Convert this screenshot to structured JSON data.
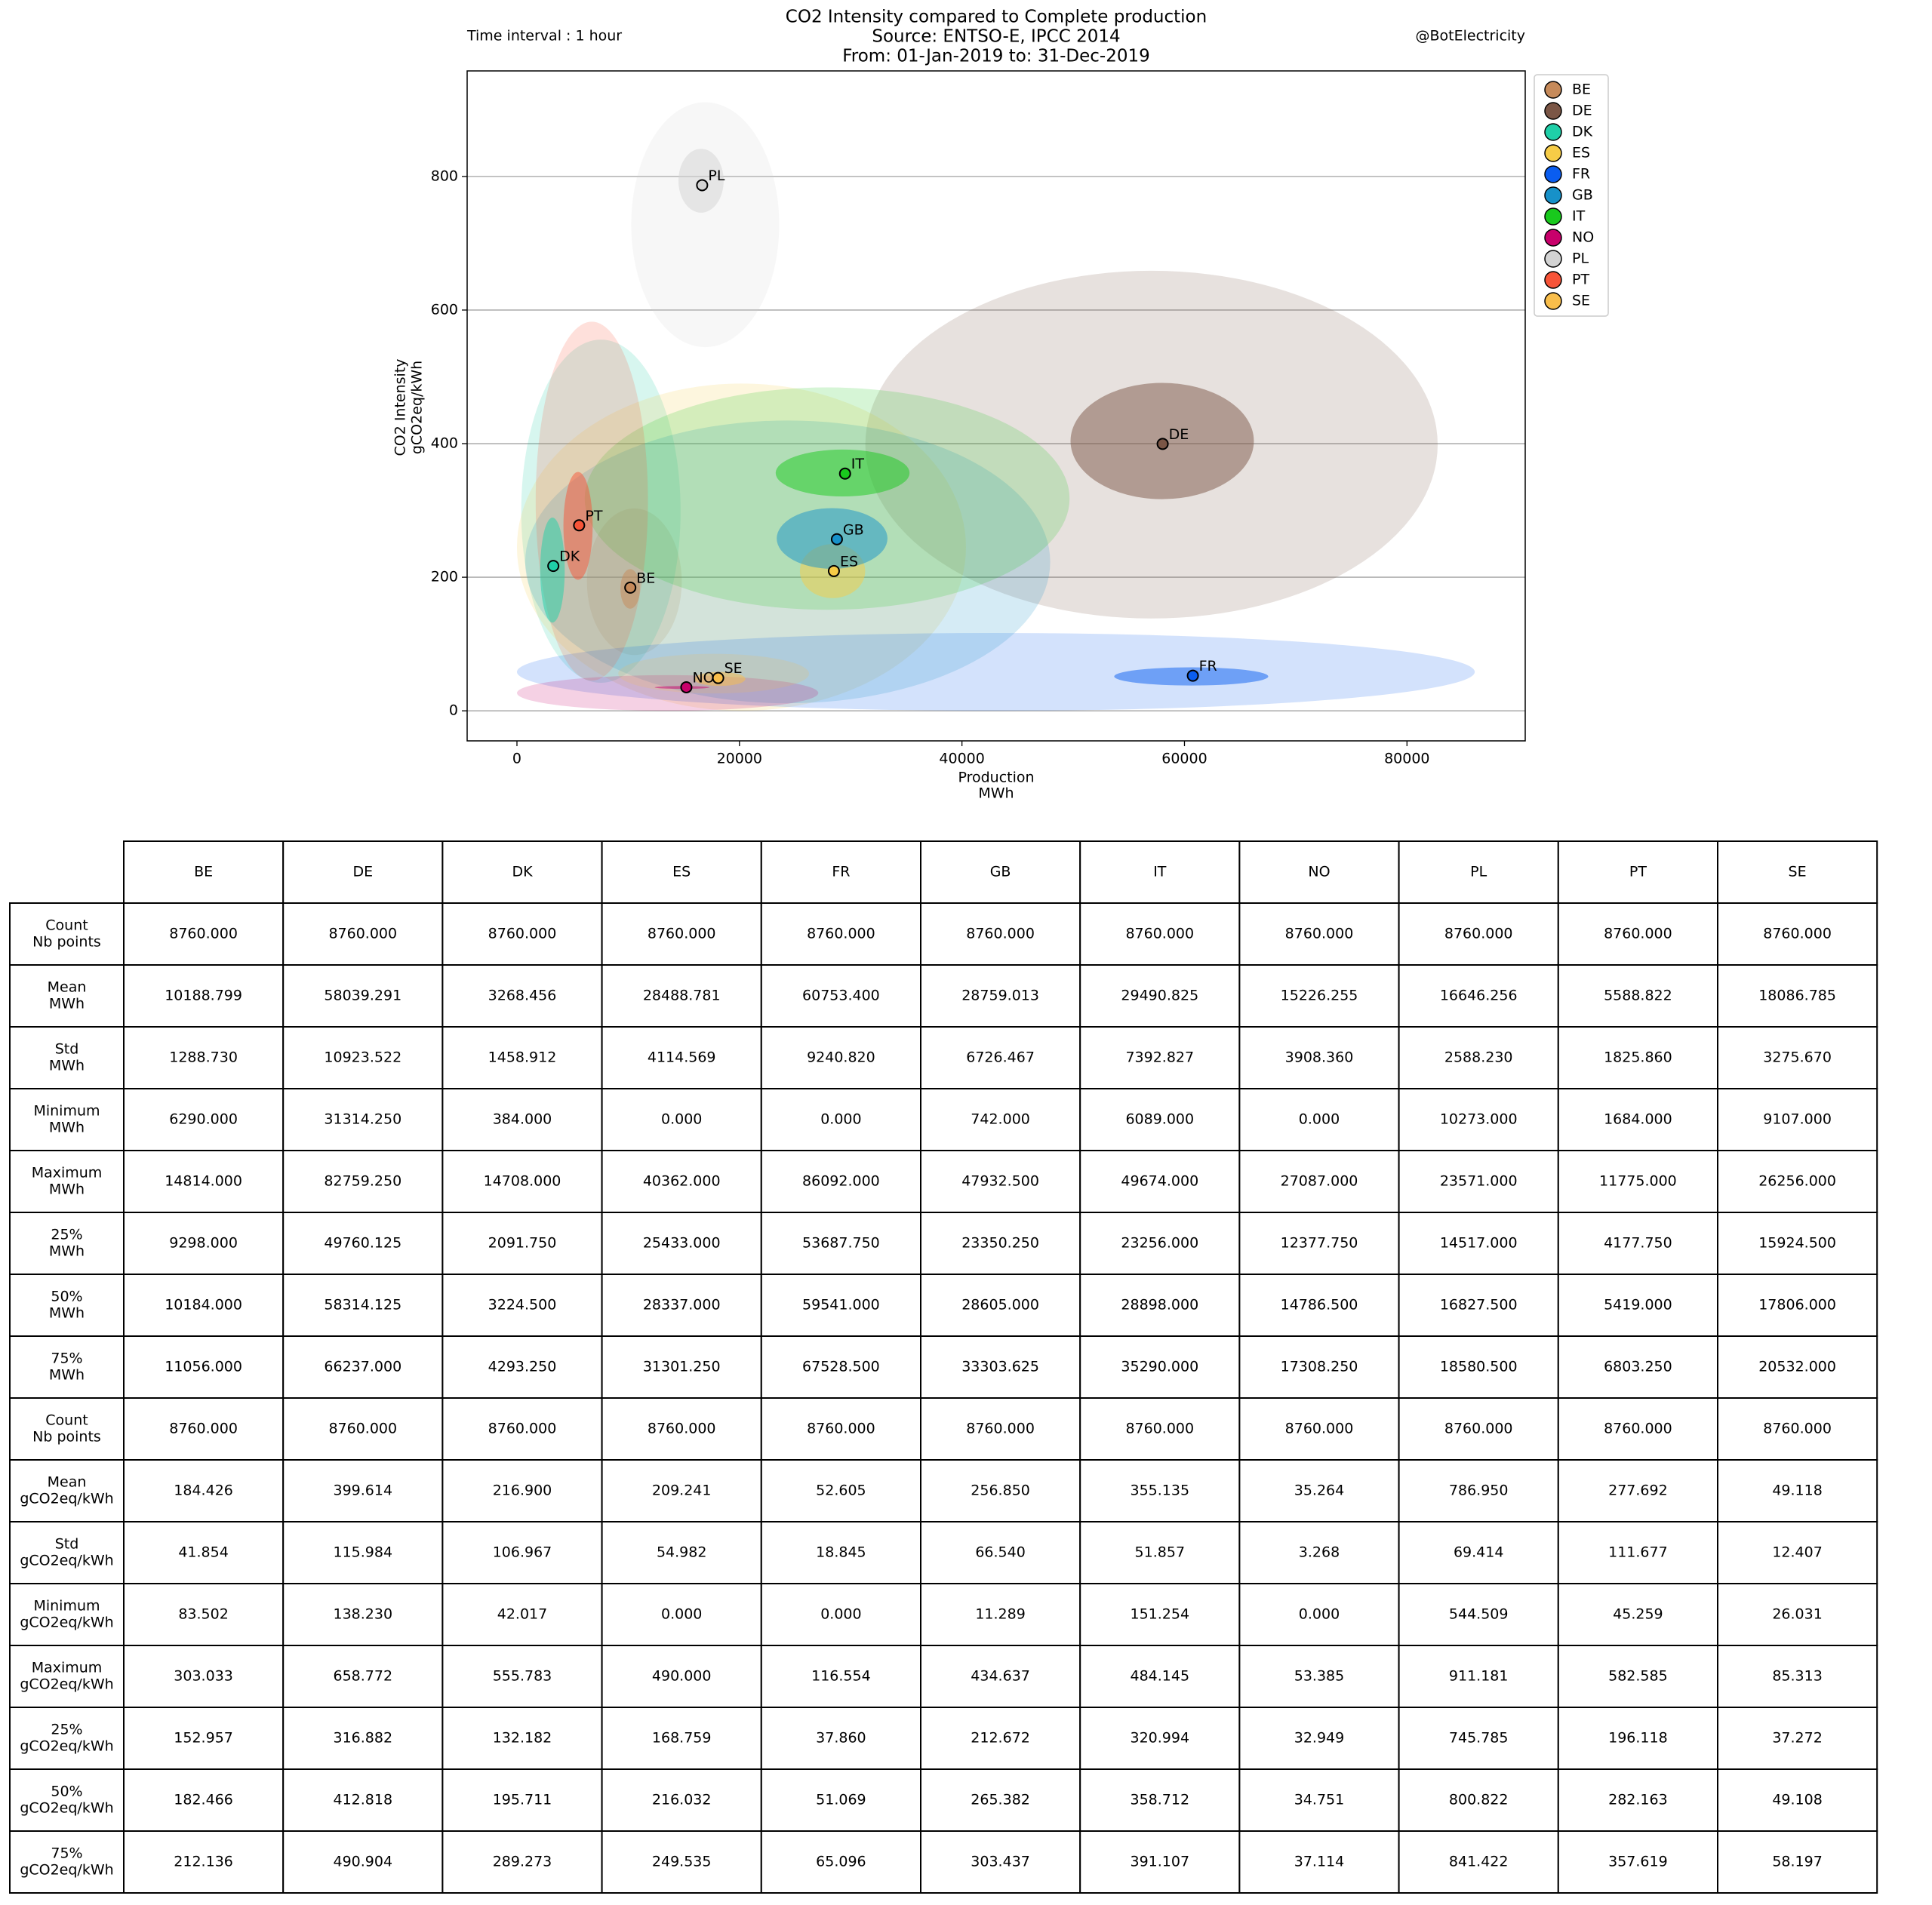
{
  "chart_data": {
    "type": "scatter",
    "title": [
      "CO2 Intensity compared to Complete production",
      "Source: ENTSO-E, IPCC 2014",
      "From: 01-Jan-2019 to: 31-Dec-2019"
    ],
    "annotations": [
      "Time interval : 1 hour",
      "@BotElectricity"
    ],
    "xlabel": [
      "Production",
      "MWh"
    ],
    "ylabel": [
      "CO2 Intensity",
      "gCO2eq/kWh"
    ],
    "xlim": [
      -4476,
      90629
    ],
    "ylim": [
      -45,
      958
    ],
    "xticks": [
      0,
      20000,
      40000,
      60000,
      80000
    ],
    "yticks": [
      0,
      200,
      400,
      600,
      800
    ],
    "grid": true,
    "legend": "outside right",
    "series": [
      {
        "name": "BE",
        "color": "#c68a5a"
      },
      {
        "name": "DE",
        "color": "#7b5646"
      },
      {
        "name": "DK",
        "color": "#1fcfa8"
      },
      {
        "name": "ES",
        "color": "#f6cc47"
      },
      {
        "name": "FR",
        "color": "#0a5df0"
      },
      {
        "name": "GB",
        "color": "#1791c9"
      },
      {
        "name": "IT",
        "color": "#19c91d"
      },
      {
        "name": "NO",
        "color": "#c8006b"
      },
      {
        "name": "PL",
        "color": "#d3d3d3"
      },
      {
        "name": "PT",
        "color": "#f75438"
      },
      {
        "name": "SE",
        "color": "#f9be4b"
      }
    ]
  },
  "table": {
    "columns": [
      "BE",
      "DE",
      "DK",
      "ES",
      "FR",
      "GB",
      "IT",
      "NO",
      "PL",
      "PT",
      "SE"
    ],
    "rows": [
      {
        "label": [
          "Count",
          "Nb points"
        ],
        "cells": [
          "8760.000",
          "8760.000",
          "8760.000",
          "8760.000",
          "8760.000",
          "8760.000",
          "8760.000",
          "8760.000",
          "8760.000",
          "8760.000",
          "8760.000"
        ]
      },
      {
        "label": [
          "Mean",
          "MWh"
        ],
        "cells": [
          "10188.799",
          "58039.291",
          "3268.456",
          "28488.781",
          "60753.400",
          "28759.013",
          "29490.825",
          "15226.255",
          "16646.256",
          "5588.822",
          "18086.785"
        ]
      },
      {
        "label": [
          "Std",
          "MWh"
        ],
        "cells": [
          "1288.730",
          "10923.522",
          "1458.912",
          "4114.569",
          "9240.820",
          "6726.467",
          "7392.827",
          "3908.360",
          "2588.230",
          "1825.860",
          "3275.670"
        ]
      },
      {
        "label": [
          "Minimum",
          "MWh"
        ],
        "cells": [
          "6290.000",
          "31314.250",
          "384.000",
          "0.000",
          "0.000",
          "742.000",
          "6089.000",
          "0.000",
          "10273.000",
          "1684.000",
          "9107.000"
        ]
      },
      {
        "label": [
          "Maximum",
          "MWh"
        ],
        "cells": [
          "14814.000",
          "82759.250",
          "14708.000",
          "40362.000",
          "86092.000",
          "47932.500",
          "49674.000",
          "27087.000",
          "23571.000",
          "11775.000",
          "26256.000"
        ]
      },
      {
        "label": [
          "25%",
          "MWh"
        ],
        "cells": [
          "9298.000",
          "49760.125",
          "2091.750",
          "25433.000",
          "53687.750",
          "23350.250",
          "23256.000",
          "12377.750",
          "14517.000",
          "4177.750",
          "15924.500"
        ]
      },
      {
        "label": [
          "50%",
          "MWh"
        ],
        "cells": [
          "10184.000",
          "58314.125",
          "3224.500",
          "28337.000",
          "59541.000",
          "28605.000",
          "28898.000",
          "14786.500",
          "16827.500",
          "5419.000",
          "17806.000"
        ]
      },
      {
        "label": [
          "75%",
          "MWh"
        ],
        "cells": [
          "11056.000",
          "66237.000",
          "4293.250",
          "31301.250",
          "67528.500",
          "33303.625",
          "35290.000",
          "17308.250",
          "18580.500",
          "6803.250",
          "20532.000"
        ]
      },
      {
        "label": [
          "Count",
          "Nb points"
        ],
        "cells": [
          "8760.000",
          "8760.000",
          "8760.000",
          "8760.000",
          "8760.000",
          "8760.000",
          "8760.000",
          "8760.000",
          "8760.000",
          "8760.000",
          "8760.000"
        ]
      },
      {
        "label": [
          "Mean",
          "gCO2eq/kWh"
        ],
        "cells": [
          "184.426",
          "399.614",
          "216.900",
          "209.241",
          "52.605",
          "256.850",
          "355.135",
          "35.264",
          "786.950",
          "277.692",
          "49.118"
        ]
      },
      {
        "label": [
          "Std",
          "gCO2eq/kWh"
        ],
        "cells": [
          "41.854",
          "115.984",
          "106.967",
          "54.982",
          "18.845",
          "66.540",
          "51.857",
          "3.268",
          "69.414",
          "111.677",
          "12.407"
        ]
      },
      {
        "label": [
          "Minimum",
          "gCO2eq/kWh"
        ],
        "cells": [
          "83.502",
          "138.230",
          "42.017",
          "0.000",
          "0.000",
          "11.289",
          "151.254",
          "0.000",
          "544.509",
          "45.259",
          "26.031"
        ]
      },
      {
        "label": [
          "Maximum",
          "gCO2eq/kWh"
        ],
        "cells": [
          "303.033",
          "658.772",
          "555.783",
          "490.000",
          "116.554",
          "434.637",
          "484.145",
          "53.385",
          "911.181",
          "582.585",
          "85.313"
        ]
      },
      {
        "label": [
          "25%",
          "gCO2eq/kWh"
        ],
        "cells": [
          "152.957",
          "316.882",
          "132.182",
          "168.759",
          "37.860",
          "212.672",
          "320.994",
          "32.949",
          "745.785",
          "196.118",
          "37.272"
        ]
      },
      {
        "label": [
          "50%",
          "gCO2eq/kWh"
        ],
        "cells": [
          "182.466",
          "412.818",
          "195.711",
          "216.032",
          "51.069",
          "265.382",
          "358.712",
          "34.751",
          "800.822",
          "282.163",
          "49.108"
        ]
      },
      {
        "label": [
          "75%",
          "gCO2eq/kWh"
        ],
        "cells": [
          "212.136",
          "490.904",
          "289.273",
          "249.535",
          "65.096",
          "303.437",
          "391.107",
          "37.114",
          "841.422",
          "357.619",
          "58.197"
        ]
      }
    ]
  }
}
